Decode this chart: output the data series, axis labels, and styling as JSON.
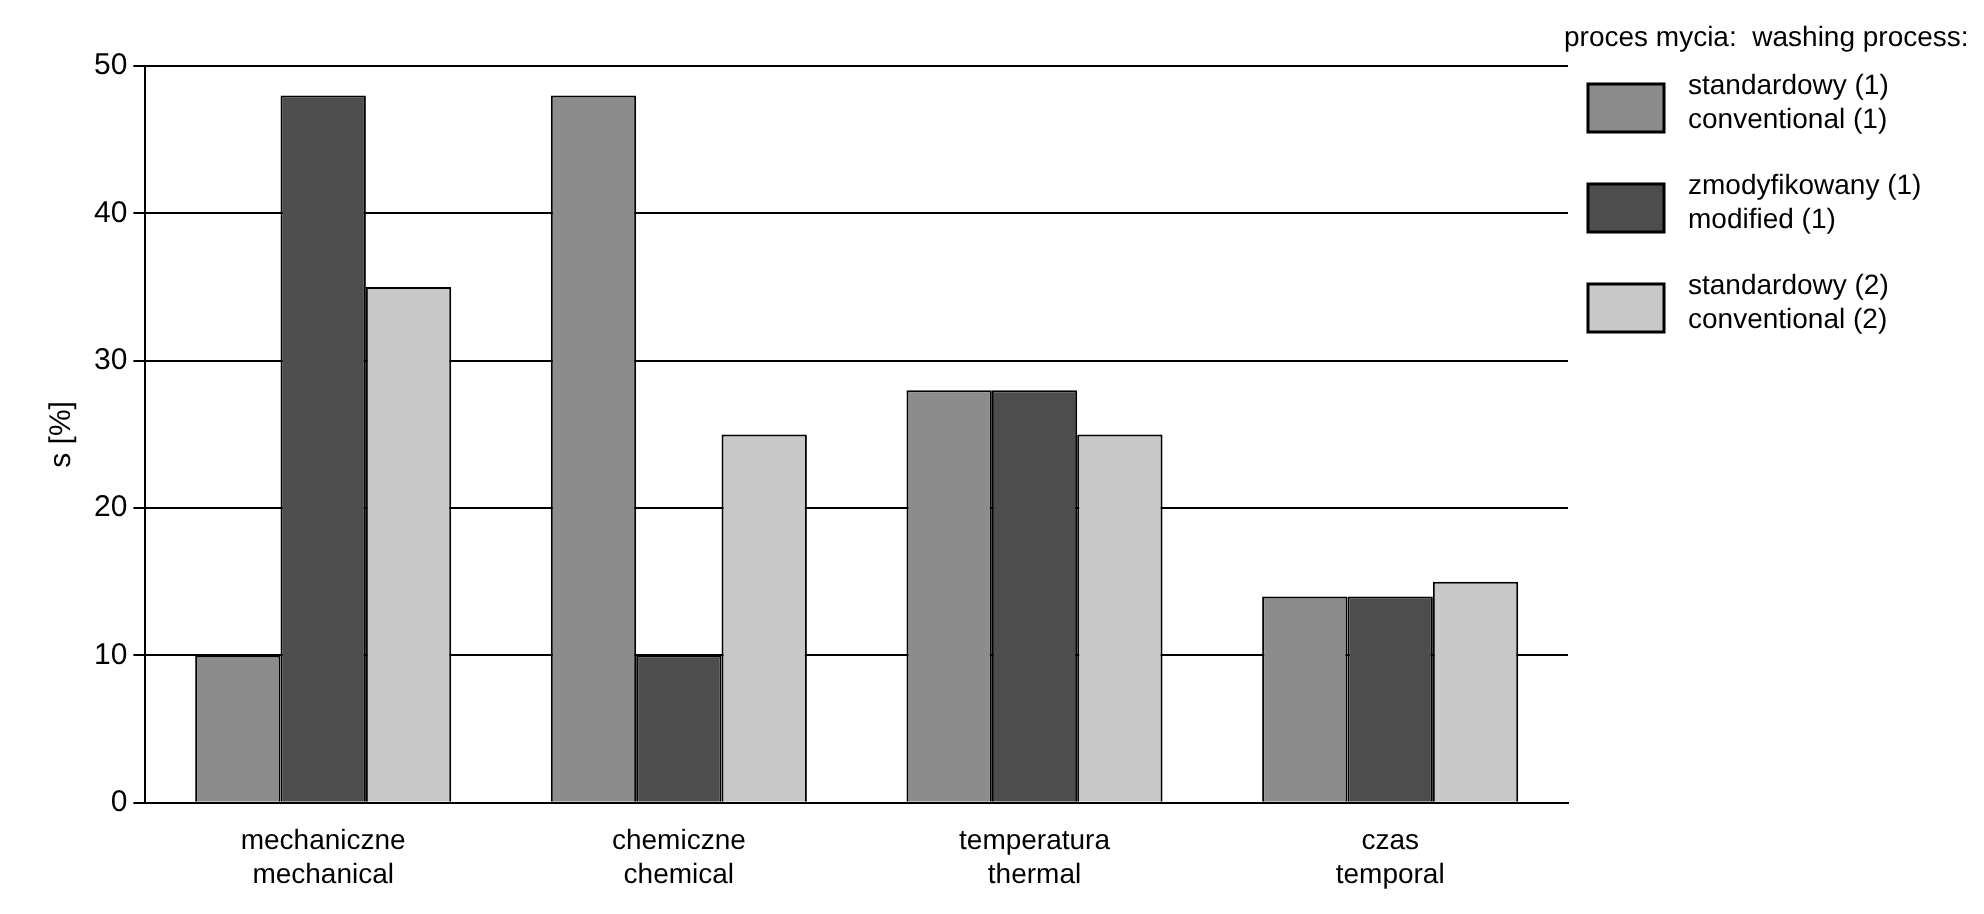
{
  "chart_data": {
    "type": "bar",
    "ylabel": "s [%]",
    "legend_title": "proces mycia:  washing process:",
    "categories": [
      "mechaniczne\nmechanical",
      "chemiczne\nchemical",
      "temperatura\nthermal",
      "czas\ntemporal"
    ],
    "series": [
      {
        "name": "standardowy (1)\nconventional (1)",
        "color": "#8c8c8c",
        "values": [
          10,
          48,
          28,
          14
        ]
      },
      {
        "name": "zmodyfikowany (1)\nmodified (1)",
        "color": "#4d4d4d",
        "values": [
          48,
          10,
          28,
          14
        ]
      },
      {
        "name": "standardowy (2)\nconventional (2)",
        "color": "#c8c8c8",
        "values": [
          35,
          25,
          25,
          15
        ]
      }
    ],
    "ylim": [
      0,
      50
    ],
    "yticks": [
      0,
      10,
      20,
      30,
      40,
      50
    ],
    "grid": "y",
    "legend": "top right"
  }
}
